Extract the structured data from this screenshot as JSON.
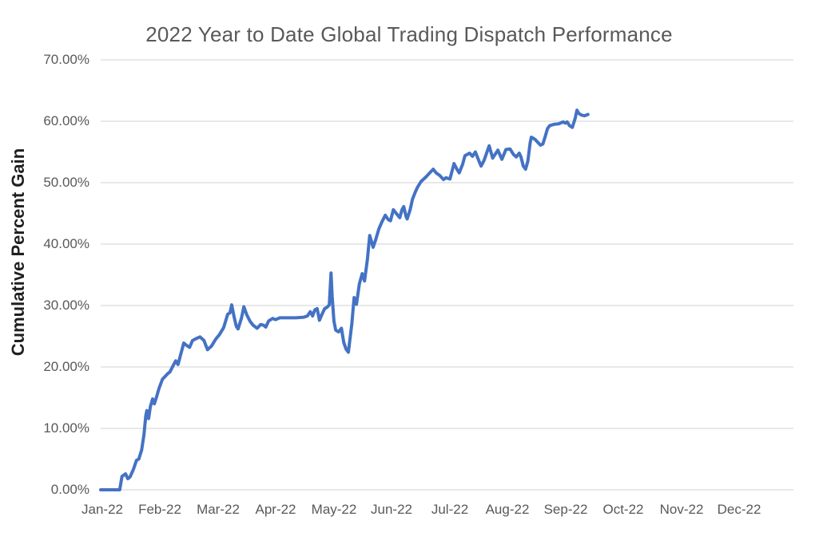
{
  "page": {
    "background": "#ffffff"
  },
  "colors": {
    "line": "#4472C4",
    "gridline": "#D9D9D9",
    "tick_text": "#595959",
    "title_text": "#595959",
    "axis_title_text": "#1F1F1F"
  },
  "chart_data": {
    "type": "line",
    "title": "2022 Year to Date Global Trading Dispatch Performance",
    "xlabel": "",
    "ylabel": "Cumulative Percent Gain",
    "legend": "none",
    "grid": "horizontal",
    "ylim_percent": [
      0,
      70
    ],
    "x_months": 12,
    "y_tick_labels": [
      "70.00%",
      "60.00%",
      "50.00%",
      "40.00%",
      "30.00%",
      "20.00%",
      "10.00%",
      "0.00%"
    ],
    "x_tick_labels": [
      "Jan-22",
      "Feb-22",
      "Mar-22",
      "Apr-22",
      "May-22",
      "Jun-22",
      "Jul-22",
      "Aug-22",
      "Sep-22",
      "Oct-22",
      "Nov-22",
      "Dec-22"
    ],
    "series": [
      {
        "name": "Cumulative Percent Gain",
        "x_unit": "fractional months since Jan 1, 2022",
        "y_unit": "percent",
        "points": [
          [
            0.0,
            0.0
          ],
          [
            0.1,
            0.0
          ],
          [
            0.2,
            0.0
          ],
          [
            0.33,
            0.0
          ],
          [
            0.37,
            2.2
          ],
          [
            0.43,
            2.6
          ],
          [
            0.47,
            1.8
          ],
          [
            0.51,
            2.1
          ],
          [
            0.57,
            3.4
          ],
          [
            0.62,
            4.8
          ],
          [
            0.66,
            5.0
          ],
          [
            0.71,
            6.5
          ],
          [
            0.75,
            9.0
          ],
          [
            0.78,
            12.0
          ],
          [
            0.8,
            12.9
          ],
          [
            0.83,
            11.6
          ],
          [
            0.86,
            13.5
          ],
          [
            0.9,
            14.8
          ],
          [
            0.93,
            14.0
          ],
          [
            0.97,
            15.2
          ],
          [
            1.01,
            16.5
          ],
          [
            1.07,
            18.0
          ],
          [
            1.12,
            18.5
          ],
          [
            1.16,
            18.9
          ],
          [
            1.2,
            19.2
          ],
          [
            1.26,
            20.3
          ],
          [
            1.3,
            21.0
          ],
          [
            1.34,
            20.4
          ],
          [
            1.4,
            22.5
          ],
          [
            1.44,
            23.9
          ],
          [
            1.49,
            23.5
          ],
          [
            1.54,
            23.2
          ],
          [
            1.59,
            24.3
          ],
          [
            1.65,
            24.6
          ],
          [
            1.72,
            24.9
          ],
          [
            1.79,
            24.3
          ],
          [
            1.85,
            22.8
          ],
          [
            1.92,
            23.4
          ],
          [
            1.99,
            24.5
          ],
          [
            2.06,
            25.3
          ],
          [
            2.13,
            26.4
          ],
          [
            2.2,
            28.6
          ],
          [
            2.24,
            28.8
          ],
          [
            2.27,
            30.1
          ],
          [
            2.31,
            28.2
          ],
          [
            2.35,
            26.6
          ],
          [
            2.38,
            26.2
          ],
          [
            2.44,
            28.0
          ],
          [
            2.48,
            29.8
          ],
          [
            2.53,
            28.5
          ],
          [
            2.59,
            27.4
          ],
          [
            2.64,
            26.8
          ],
          [
            2.71,
            26.3
          ],
          [
            2.77,
            26.9
          ],
          [
            2.82,
            26.8
          ],
          [
            2.86,
            26.5
          ],
          [
            2.91,
            27.5
          ],
          [
            2.98,
            27.9
          ],
          [
            3.03,
            27.7
          ],
          [
            3.1,
            28.0
          ],
          [
            3.24,
            28.0
          ],
          [
            3.38,
            28.0
          ],
          [
            3.52,
            28.1
          ],
          [
            3.58,
            28.3
          ],
          [
            3.63,
            29.0
          ],
          [
            3.67,
            28.3
          ],
          [
            3.71,
            29.3
          ],
          [
            3.75,
            29.5
          ],
          [
            3.79,
            27.6
          ],
          [
            3.83,
            28.5
          ],
          [
            3.88,
            29.5
          ],
          [
            3.92,
            29.7
          ],
          [
            3.96,
            30.1
          ],
          [
            3.99,
            35.3
          ],
          [
            4.01,
            31.5
          ],
          [
            4.04,
            27.5
          ],
          [
            4.07,
            26.0
          ],
          [
            4.12,
            25.7
          ],
          [
            4.17,
            26.3
          ],
          [
            4.21,
            24.0
          ],
          [
            4.25,
            22.9
          ],
          [
            4.29,
            22.4
          ],
          [
            4.35,
            27.0
          ],
          [
            4.39,
            31.3
          ],
          [
            4.43,
            30.2
          ],
          [
            4.48,
            33.5
          ],
          [
            4.53,
            35.2
          ],
          [
            4.57,
            34.0
          ],
          [
            4.62,
            37.5
          ],
          [
            4.66,
            41.4
          ],
          [
            4.72,
            39.5
          ],
          [
            4.76,
            40.6
          ],
          [
            4.82,
            42.5
          ],
          [
            4.87,
            43.6
          ],
          [
            4.93,
            44.7
          ],
          [
            4.98,
            44.0
          ],
          [
            5.02,
            43.8
          ],
          [
            5.07,
            45.6
          ],
          [
            5.12,
            45.0
          ],
          [
            5.18,
            44.3
          ],
          [
            5.22,
            45.6
          ],
          [
            5.25,
            46.1
          ],
          [
            5.29,
            44.5
          ],
          [
            5.31,
            44.1
          ],
          [
            5.36,
            45.6
          ],
          [
            5.4,
            47.3
          ],
          [
            5.45,
            48.5
          ],
          [
            5.49,
            49.3
          ],
          [
            5.55,
            50.2
          ],
          [
            5.63,
            50.9
          ],
          [
            5.7,
            51.6
          ],
          [
            5.76,
            52.2
          ],
          [
            5.81,
            51.6
          ],
          [
            5.87,
            51.2
          ],
          [
            5.94,
            50.5
          ],
          [
            5.98,
            50.8
          ],
          [
            6.05,
            50.6
          ],
          [
            6.12,
            53.1
          ],
          [
            6.17,
            52.2
          ],
          [
            6.21,
            51.6
          ],
          [
            6.27,
            53.0
          ],
          [
            6.31,
            54.4
          ],
          [
            6.39,
            54.8
          ],
          [
            6.44,
            54.3
          ],
          [
            6.49,
            55.0
          ],
          [
            6.55,
            53.6
          ],
          [
            6.59,
            52.7
          ],
          [
            6.64,
            53.6
          ],
          [
            6.73,
            56.0
          ],
          [
            6.79,
            54.0
          ],
          [
            6.88,
            55.3
          ],
          [
            6.95,
            53.8
          ],
          [
            7.02,
            55.4
          ],
          [
            7.09,
            55.5
          ],
          [
            7.15,
            54.6
          ],
          [
            7.2,
            54.2
          ],
          [
            7.25,
            54.8
          ],
          [
            7.28,
            54.2
          ],
          [
            7.32,
            52.7
          ],
          [
            7.36,
            52.2
          ],
          [
            7.4,
            53.5
          ],
          [
            7.44,
            56.5
          ],
          [
            7.46,
            57.4
          ],
          [
            7.5,
            57.2
          ],
          [
            7.53,
            57.0
          ],
          [
            7.57,
            56.6
          ],
          [
            7.62,
            56.1
          ],
          [
            7.66,
            56.3
          ],
          [
            7.7,
            57.5
          ],
          [
            7.74,
            58.8
          ],
          [
            7.78,
            59.3
          ],
          [
            7.85,
            59.5
          ],
          [
            7.94,
            59.6
          ],
          [
            8.01,
            59.9
          ],
          [
            8.05,
            59.7
          ],
          [
            8.08,
            59.9
          ],
          [
            8.12,
            59.3
          ],
          [
            8.17,
            59.0
          ],
          [
            8.22,
            60.5
          ],
          [
            8.25,
            61.8
          ],
          [
            8.28,
            61.3
          ],
          [
            8.33,
            61.0
          ],
          [
            8.38,
            60.9
          ],
          [
            8.44,
            61.1
          ]
        ]
      }
    ]
  }
}
